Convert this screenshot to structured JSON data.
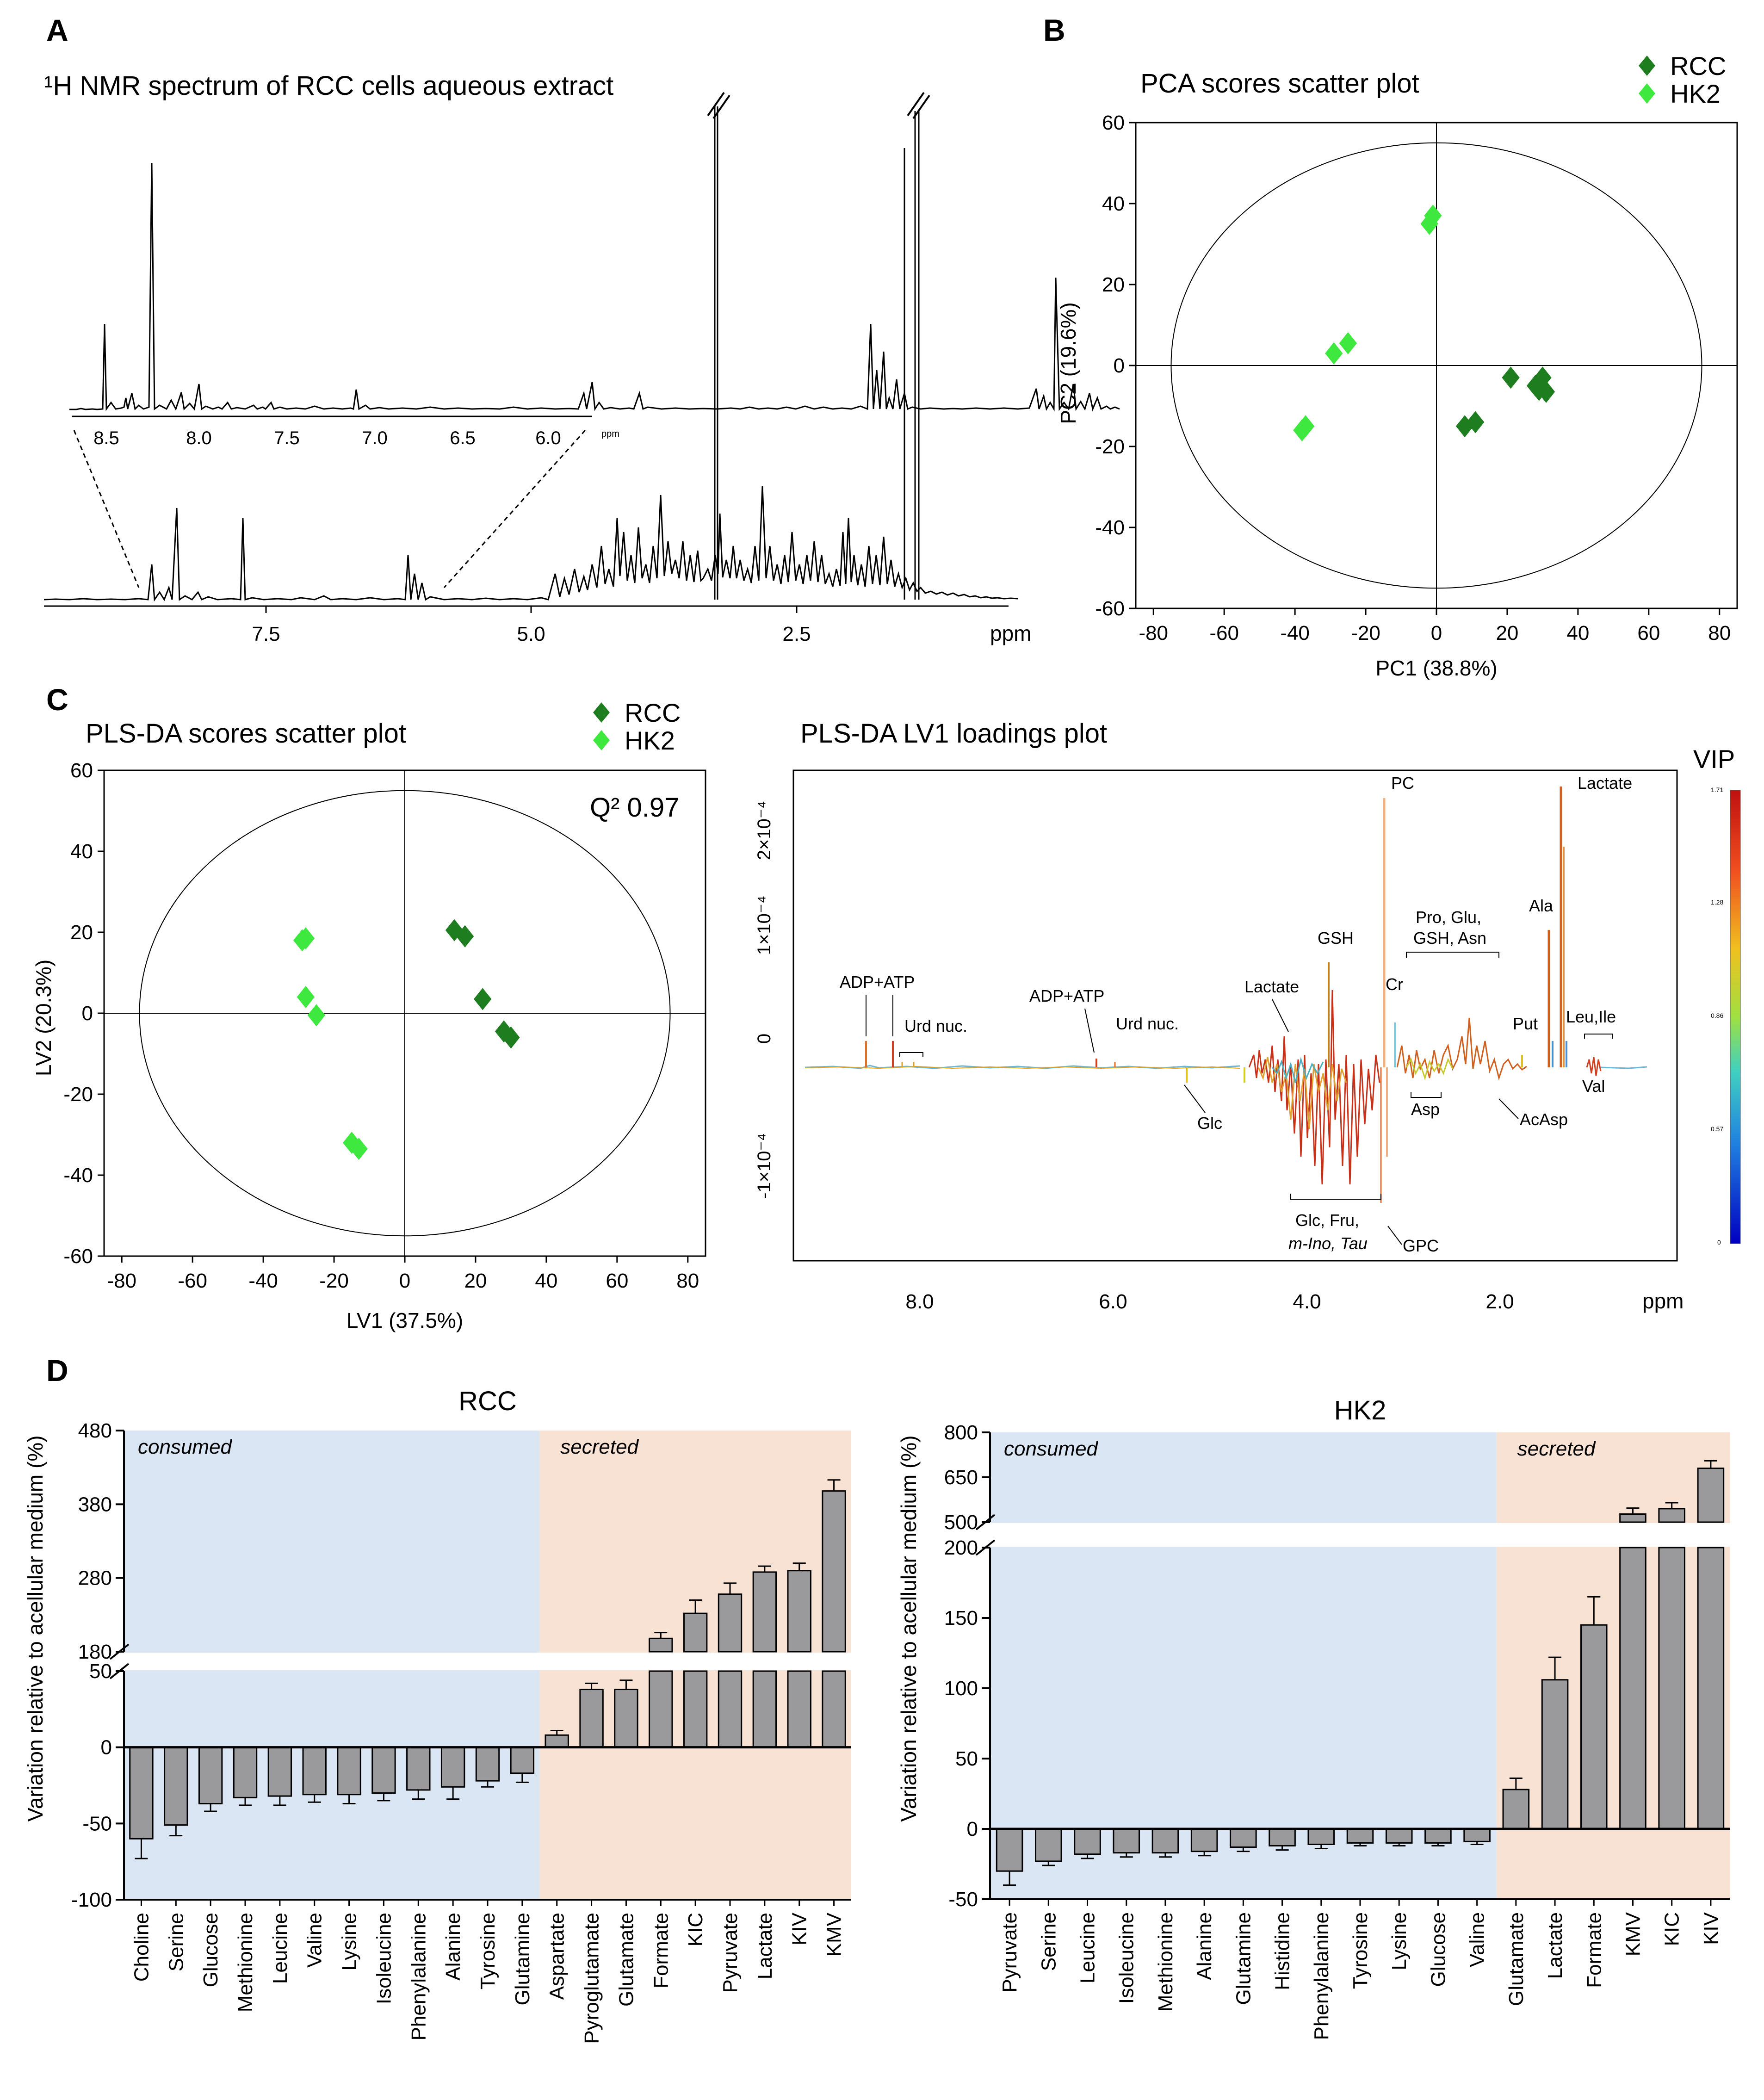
{
  "panels": {
    "A": "A",
    "B": "B",
    "C": "C",
    "D": "D"
  },
  "panelA": {
    "title": "¹H NMR spectrum of RCC cells aqueous extract",
    "xlabel": "ppm",
    "main_ticks": [
      "7.5",
      "5.0",
      "2.5"
    ],
    "inset_ticks": [
      "8.5",
      "8.0",
      "7.5",
      "7.0",
      "6.5",
      "6.0"
    ],
    "inset_unit": "ppm"
  },
  "panelB": {
    "title": "PCA scores scatter plot",
    "xlabel": "PC1 (38.8%)",
    "ylabel": "PC2 (19.6%)",
    "legend": [
      {
        "name": "RCC",
        "color": "#1e7d1e"
      },
      {
        "name": "HK2",
        "color": "#3ee83e"
      }
    ]
  },
  "panelC_scores": {
    "title": "PLS-DA scores scatter plot",
    "xlabel": "LV1 (37.5%)",
    "ylabel": "LV2 (20.3%)",
    "q2_label": "Q² 0.97",
    "legend": [
      {
        "name": "RCC",
        "color": "#1e7d1e"
      },
      {
        "name": "HK2",
        "color": "#3ee83e"
      }
    ]
  },
  "panelC_loadings": {
    "title": "PLS-DA LV1 loadings plot",
    "xlabel": "ppm",
    "x_ticks": [
      "8.0",
      "6.0",
      "4.0",
      "2.0"
    ],
    "y_ticks": [
      "2×10⁻⁴",
      "1×10⁻⁴",
      "0",
      "-1×10⁻⁴"
    ],
    "vip_label": "VIP",
    "vip_ticks": [
      "1.71",
      "1.28",
      "0.86",
      "0.57",
      "0"
    ],
    "annotations": {
      "pc": "PC",
      "lactate_top": "Lactate",
      "ala": "Ala",
      "gsh": "GSH",
      "pro_l1": "Pro, Glu,",
      "pro_l2": "GSH, Asn",
      "cr": "Cr",
      "lactate_mid": "Lactate",
      "adp1": "ADP+ATP",
      "adp2": "ADP+ATP",
      "urd1": "Urd nuc.",
      "urd2": "Urd nuc.",
      "put": "Put",
      "leu": "Leu,Ile",
      "val": "Val",
      "glc": "Glc",
      "asp": "Asp",
      "acasp": "AcAsp",
      "glcfru_l1": "Glc, Fru,",
      "glcfru_l2": "m-Ino, Tau",
      "gpc": "GPC"
    }
  },
  "panelD": {
    "ylabel_left": "Variation relative to acellular medium (%)",
    "ylabel_right": "Variation relative to acellular medium (%)",
    "consumed_label": "consumed",
    "secreted_label": "secreted"
  },
  "chart_data": [
    {
      "type": "scatter",
      "title": "PCA scores scatter plot",
      "xlabel": "PC1 (38.8%)",
      "ylabel": "PC2 (19.6%)",
      "xlim": [
        -85,
        85
      ],
      "ylim": [
        -60,
        60
      ],
      "x_ticks": [
        -80,
        -60,
        -40,
        -20,
        0,
        20,
        40,
        60,
        80
      ],
      "y_ticks": [
        60,
        40,
        20,
        0,
        -20,
        -40,
        -60
      ],
      "series": [
        {
          "name": "RCC",
          "points": [
            [
              21,
              -3
            ],
            [
              29,
              -6
            ],
            [
              30,
              -3
            ],
            [
              31,
              -6.5
            ],
            [
              28,
              -5
            ],
            [
              8,
              -15
            ],
            [
              11,
              -14
            ]
          ]
        },
        {
          "name": "HK2",
          "points": [
            [
              -1,
              37
            ],
            [
              -2,
              35
            ],
            [
              -25,
              5.5
            ],
            [
              -29,
              3
            ],
            [
              -37,
              -15
            ],
            [
              -38,
              -16
            ]
          ]
        }
      ]
    },
    {
      "type": "scatter",
      "title": "PLS-DA scores scatter plot",
      "xlabel": "LV1 (37.5%)",
      "ylabel": "LV2 (20.3%)",
      "xlim": [
        -85,
        85
      ],
      "ylim": [
        -60,
        60
      ],
      "x_ticks": [
        -80,
        -60,
        -40,
        -20,
        0,
        20,
        40,
        60,
        80
      ],
      "y_ticks": [
        60,
        40,
        20,
        0,
        -20,
        -40,
        -60
      ],
      "series": [
        {
          "name": "RCC",
          "points": [
            [
              14,
              20.5
            ],
            [
              17,
              19
            ],
            [
              22,
              3.5
            ],
            [
              28,
              -4.5
            ],
            [
              30,
              -6
            ]
          ]
        },
        {
          "name": "HK2",
          "points": [
            [
              -29,
              18
            ],
            [
              -28,
              18.5
            ],
            [
              -28,
              4
            ],
            [
              -25,
              -0.5
            ],
            [
              -15,
              -32
            ],
            [
              -13,
              -33.5
            ]
          ]
        }
      ]
    },
    {
      "type": "bar",
      "title": "RCC",
      "ylabel": "Variation relative to acellular medium (%)",
      "y_ticks_lower": [
        50,
        0,
        -50,
        -100
      ],
      "y_ticks_upper": [
        480,
        380,
        280,
        180
      ],
      "categories": [
        "Choline",
        "Serine",
        "Glucose",
        "Methionine",
        "Leucine",
        "Valine",
        "Lysine",
        "Isoleucine",
        "Phenylalanine",
        "Alanine",
        "Tyrosine",
        "Glutamine",
        "Aspartate",
        "Pyroglutamate",
        "Glutamate",
        "Formate",
        "KIC",
        "Pyruvate",
        "Lactate",
        "KIV",
        "KMV"
      ],
      "values": [
        -60,
        -51,
        -37,
        -33,
        -32,
        -31,
        -31,
        -30,
        -28,
        -26,
        -22,
        -17,
        8,
        38,
        38,
        198,
        232,
        258,
        288,
        290,
        398
      ],
      "errors": [
        13,
        7,
        5,
        5,
        6,
        5,
        6,
        5,
        6,
        8,
        4,
        6,
        3,
        4,
        6,
        8,
        18,
        15,
        8,
        10,
        15
      ],
      "consumed_count": 12
    },
    {
      "type": "bar",
      "title": "HK2",
      "ylabel": "Variation relative to acellular medium (%)",
      "y_ticks_lower": [
        200,
        150,
        100,
        50,
        0,
        -50
      ],
      "y_ticks_upper": [
        800,
        650,
        500
      ],
      "categories": [
        "Pyruvate",
        "Serine",
        "Leucine",
        "Isoleucine",
        "Methionine",
        "Alanine",
        "Glutamine",
        "Histidine",
        "Phenylalanine",
        "Tyrosine",
        "Lysine",
        "Glucose",
        "Valine",
        "Glutamate",
        "Lactate",
        "Formate",
        "KMV",
        "KIC",
        "KIV"
      ],
      "values": [
        -30,
        -23,
        -18,
        -17,
        -17,
        -16,
        -13,
        -12,
        -11,
        -10,
        -10,
        -10,
        -9,
        28,
        106,
        145,
        527,
        545,
        680
      ],
      "errors": [
        10,
        3,
        3,
        3,
        3,
        3,
        3,
        3,
        3,
        2,
        2,
        2,
        2,
        8,
        16,
        20,
        20,
        20,
        25
      ],
      "consumed_count": 13
    }
  ]
}
